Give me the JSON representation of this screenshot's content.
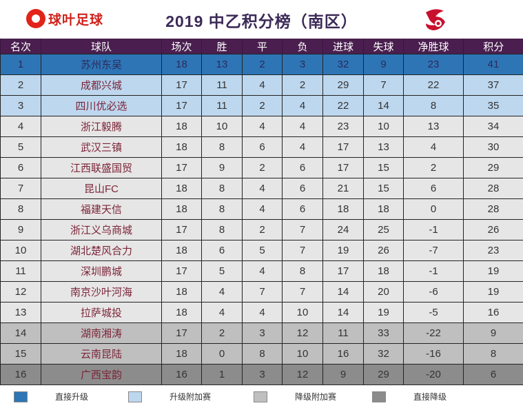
{
  "brand": {
    "name": "球叶足球",
    "logo_icon": "brand-ball-icon"
  },
  "title": "2019 中乙积分榜（南区）",
  "league_logo_icon": "league-emblem-icon",
  "chart_data": {
    "type": "table",
    "title": "2019 中乙积分榜（南区）",
    "columns": [
      "名次",
      "球队",
      "场次",
      "胜",
      "平",
      "负",
      "进球",
      "失球",
      "净胜球",
      "积分"
    ],
    "rows": [
      [
        "1",
        "苏州东吴",
        "18",
        "13",
        "2",
        "3",
        "32",
        "9",
        "23",
        "41"
      ],
      [
        "2",
        "成都兴城",
        "17",
        "11",
        "4",
        "2",
        "29",
        "7",
        "22",
        "37"
      ],
      [
        "3",
        "四川优必选",
        "17",
        "11",
        "2",
        "4",
        "22",
        "14",
        "8",
        "35"
      ],
      [
        "4",
        "浙江毅腾",
        "18",
        "10",
        "4",
        "4",
        "23",
        "10",
        "13",
        "34"
      ],
      [
        "5",
        "武汉三镇",
        "18",
        "8",
        "6",
        "4",
        "17",
        "13",
        "4",
        "30"
      ],
      [
        "6",
        "江西联盛国贸",
        "17",
        "9",
        "2",
        "6",
        "17",
        "15",
        "2",
        "29"
      ],
      [
        "7",
        "昆山FC",
        "18",
        "8",
        "4",
        "6",
        "21",
        "15",
        "6",
        "28"
      ],
      [
        "8",
        "福建天信",
        "18",
        "8",
        "4",
        "6",
        "18",
        "18",
        "0",
        "28"
      ],
      [
        "9",
        "浙江义乌商城",
        "17",
        "8",
        "2",
        "7",
        "24",
        "25",
        "-1",
        "26"
      ],
      [
        "10",
        "湖北楚风合力",
        "18",
        "6",
        "5",
        "7",
        "19",
        "26",
        "-7",
        "23"
      ],
      [
        "11",
        "深圳鹏城",
        "17",
        "5",
        "4",
        "8",
        "17",
        "18",
        "-1",
        "19"
      ],
      [
        "12",
        "南京沙叶河海",
        "18",
        "4",
        "7",
        "7",
        "14",
        "20",
        "-6",
        "19"
      ],
      [
        "13",
        "拉萨城投",
        "18",
        "4",
        "4",
        "10",
        "14",
        "19",
        "-5",
        "16"
      ],
      [
        "14",
        "湖南湘涛",
        "17",
        "2",
        "3",
        "12",
        "11",
        "33",
        "-22",
        "9"
      ],
      [
        "15",
        "云南昆陆",
        "18",
        "0",
        "8",
        "10",
        "16",
        "32",
        "-16",
        "8"
      ],
      [
        "16",
        "广西宝韵",
        "16",
        "1",
        "3",
        "12",
        "9",
        "29",
        "-20",
        "6"
      ]
    ],
    "row_status": [
      "promo",
      "playoff",
      "playoff",
      "mid",
      "mid",
      "mid",
      "mid",
      "mid",
      "mid",
      "mid",
      "mid",
      "mid",
      "mid",
      "relplay",
      "relplay",
      "releg"
    ]
  },
  "legend": [
    {
      "label": "直接升级",
      "color": "#2e75b6"
    },
    {
      "label": "升级附加赛",
      "color": "#bdd7ee"
    },
    {
      "label": "降级附加赛",
      "color": "#bfbfbf"
    },
    {
      "label": "直接降级",
      "color": "#8c8c8c"
    }
  ]
}
